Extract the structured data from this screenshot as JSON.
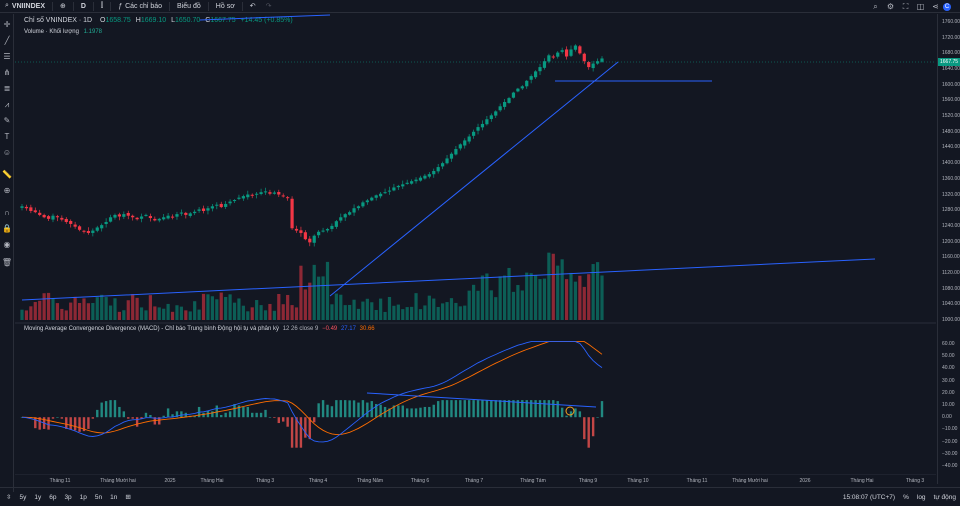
{
  "symbol": "VNIINDEX",
  "interval": "D",
  "toolbar": {
    "indicators": "Các chỉ báo",
    "chart": "Biểu đồ",
    "profile": "Hồ sơ"
  },
  "legend": {
    "title": "Chỉ số VNINDEX · 1D",
    "o_label": "O",
    "o": "1658.75",
    "h_label": "H",
    "h": "1669.10",
    "l_label": "L",
    "l": "1650.70",
    "c_label": "C",
    "c": "1667.75",
    "change": "+14.45 (+0.85%)",
    "volume_label": "Volume · Khối lượng",
    "volume_value": "1.1978",
    "macd_title": "Moving Average Convergence Divergence (MACD) - Chỉ báo Trung bình Động hội tụ và phân kỳ",
    "macd_params": "12 26 close 9",
    "macd_hist": "−0.49",
    "macd_line": "27.17",
    "macd_signal": "30.66"
  },
  "price_axis": [
    "1760.00",
    "1720.00",
    "1680.00",
    "1640.00",
    "1600.00",
    "1560.00",
    "1520.00",
    "1480.00",
    "1440.00",
    "1400.00",
    "1360.00",
    "1320.00",
    "1280.00",
    "1240.00",
    "1200.00",
    "1160.00",
    "1120.00",
    "1080.00",
    "1040.00",
    "1000.00"
  ],
  "last_price": "1667.75",
  "macd_axis": [
    "60.00",
    "50.00",
    "40.00",
    "30.00",
    "20.00",
    "10.00",
    "0.00",
    "−10.00",
    "−20.00",
    "−30.00",
    "−40.00"
  ],
  "time_axis": [
    "Tháng 11",
    "Tháng Mười hai",
    "2025",
    "Tháng Hai",
    "Tháng 3",
    "Tháng 4",
    "Tháng Năm",
    "Tháng 6",
    "Tháng 7",
    "Tháng Tám",
    "Tháng 9",
    "Tháng 10",
    "Tháng 11",
    "Tháng Mười hai",
    "2026",
    "Tháng Hai",
    "Tháng 3"
  ],
  "ranges": [
    "5y",
    "1y",
    "6p",
    "3p",
    "1p",
    "5n",
    "1n"
  ],
  "clock": "15:08:07 (UTC+7)",
  "pct": "%",
  "log": "log",
  "auto": "tự động",
  "colors": {
    "up": "#089981",
    "down": "#f23645",
    "bg": "#131722",
    "line": "#2962ff",
    "signal": "#ff6d00"
  },
  "chart_data": {
    "type": "candlestick",
    "price_range": [
      990,
      1770
    ],
    "closes": [
      1290,
      1285,
      1278,
      1275,
      1268,
      1262,
      1258,
      1266,
      1262,
      1256,
      1250,
      1245,
      1238,
      1230,
      1226,
      1222,
      1228,
      1236,
      1242,
      1250,
      1262,
      1268,
      1264,
      1270,
      1266,
      1262,
      1257,
      1264,
      1268,
      1260,
      1254,
      1258,
      1262,
      1266,
      1262,
      1270,
      1274,
      1268,
      1272,
      1276,
      1282,
      1278,
      1285,
      1290,
      1294,
      1288,
      1296,
      1302,
      1306,
      1312,
      1316,
      1320,
      1318,
      1322,
      1326,
      1328,
      1322,
      1325,
      1320,
      1316,
      1312,
      1234,
      1228,
      1222,
      1206,
      1198,
      1215,
      1225,
      1228,
      1232,
      1240,
      1252,
      1262,
      1270,
      1275,
      1285,
      1290,
      1300,
      1305,
      1312,
      1318,
      1322,
      1326,
      1330,
      1338,
      1342,
      1346,
      1350,
      1354,
      1358,
      1363,
      1368,
      1372,
      1380,
      1390,
      1400,
      1412,
      1424,
      1436,
      1448,
      1458,
      1468,
      1480,
      1492,
      1500,
      1512,
      1522,
      1532,
      1545,
      1556,
      1566,
      1580,
      1590,
      1596,
      1610,
      1622,
      1634,
      1645,
      1660,
      1675,
      1670,
      1682,
      1688,
      1672,
      1690,
      1700,
      1680,
      1660,
      1645,
      1654,
      1660,
      1667
    ],
    "macd_range": [
      -45,
      65
    ]
  }
}
